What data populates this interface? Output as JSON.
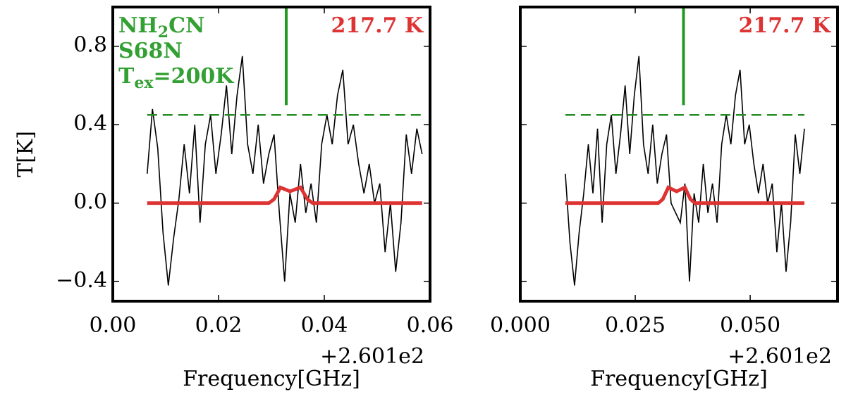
{
  "chart_data": [
    {
      "type": "line",
      "xlabel": "Frequency[GHz]",
      "ylabel": "T[K]",
      "x_offset_text": "+2.601e2",
      "xlim": [
        0,
        0.06
      ],
      "ylim": [
        -0.5,
        1.0
      ],
      "xticks": [
        {
          "value": 0,
          "label": "0.00"
        },
        {
          "value": 0.02,
          "label": "0.02"
        },
        {
          "value": 0.04,
          "label": "0.04"
        },
        {
          "value": 0.06,
          "label": "0.06"
        }
      ],
      "yticks": [
        {
          "value": -0.4,
          "label": "−0.4"
        },
        {
          "value": 0,
          "label": "0.0"
        },
        0.4,
        0.8
      ],
      "series": [
        {
          "color": "#000000",
          "linestyle": "solid",
          "thick": false,
          "x": [
            0.0065,
            0.0075,
            0.0085,
            0.0095,
            0.0105,
            0.0115,
            0.0125,
            0.0135,
            0.0145,
            0.0155,
            0.0165,
            0.0175,
            0.0185,
            0.0195,
            0.0205,
            0.0215,
            0.0225,
            0.0235,
            0.0245,
            0.0255,
            0.0265,
            0.0275,
            0.0285,
            0.0295,
            0.0305,
            0.0315,
            0.0325,
            0.0335,
            0.0345,
            0.0355,
            0.0365,
            0.0375,
            0.0385,
            0.0395,
            0.0405,
            0.0415,
            0.0425,
            0.0435,
            0.0445,
            0.0455,
            0.0465,
            0.0475,
            0.0485,
            0.0495,
            0.0505,
            0.0515,
            0.0525,
            0.0535,
            0.0545,
            0.0555,
            0.0565,
            0.0575,
            0.0585
          ],
          "values": [
            0.15,
            0.48,
            0.28,
            -0.15,
            -0.42,
            -0.18,
            0.02,
            0.3,
            0.05,
            0.4,
            -0.1,
            0.3,
            0.45,
            0.15,
            0.35,
            0.6,
            0.25,
            0.55,
            0.75,
            0.3,
            0.15,
            0.4,
            0.1,
            0.25,
            0.35,
            -0.05,
            -0.4,
            0.05,
            -0.1,
            0.2,
            -0.05,
            0.1,
            -0.1,
            0.3,
            0.45,
            0.3,
            0.55,
            0.68,
            0.3,
            0.4,
            0.2,
            0.05,
            0.2,
            0.0,
            0.1,
            -0.25,
            0.0,
            -0.35,
            -0.1,
            0.35,
            0.15,
            0.38,
            0.25
          ]
        },
        {
          "color": "#dd3333",
          "linestyle": "solid",
          "thick": true,
          "x": [
            0.0065,
            0.0295,
            0.0305,
            0.0317,
            0.0335,
            0.0355,
            0.0368,
            0.0378,
            0.0585
          ],
          "values": [
            0,
            0,
            0.02,
            0.08,
            0.06,
            0.08,
            0.02,
            0,
            0
          ]
        },
        {
          "color": "#228b22",
          "linestyle": "dashed",
          "thick": false,
          "x": [
            0.0065,
            0.0585
          ],
          "values": [
            0.45,
            0.45
          ]
        }
      ],
      "line_marker": {
        "x": 0.0328,
        "y": [
          0.5,
          1.0
        ],
        "color": "#229922"
      },
      "annotation_color": "#33a033",
      "annotation_lines": [
        [
          {
            "text": "NH",
            "sub": false
          },
          {
            "text": "2",
            "sub": true
          },
          {
            "text": "CN",
            "sub": false
          }
        ],
        [
          {
            "text": "S68N",
            "sub": false
          }
        ],
        [
          {
            "text": "T",
            "sub": false
          },
          {
            "text": "ex",
            "sub": true
          },
          {
            "text": "=200K",
            "sub": false
          }
        ]
      ],
      "temperature_label": "217.7 K",
      "temperature_color": "#dd3333"
    },
    {
      "type": "line",
      "xlabel": "Frequency[GHz]",
      "x_offset_text": "+2.601e2",
      "xlim": [
        0,
        0.069
      ],
      "ylim": [
        -0.5,
        1.0
      ],
      "xticks": [
        {
          "value": 0,
          "label": "0.000"
        },
        {
          "value": 0.025,
          "label": "0.025"
        },
        {
          "value": 0.05,
          "label": "0.050"
        }
      ],
      "yticks": [
        -0.4,
        0,
        0.4,
        0.8
      ],
      "ytick_labels": false,
      "series": [
        {
          "color": "#000000",
          "linestyle": "solid",
          "thick": false,
          "x": [
            0.0098,
            0.0108,
            0.0118,
            0.0128,
            0.0138,
            0.0148,
            0.0158,
            0.0168,
            0.0178,
            0.0188,
            0.0198,
            0.0208,
            0.0218,
            0.0228,
            0.0238,
            0.0248,
            0.0258,
            0.0268,
            0.0278,
            0.0288,
            0.0298,
            0.0308,
            0.0318,
            0.0328,
            0.0338,
            0.0348,
            0.0358,
            0.0368,
            0.0378,
            0.0388,
            0.0398,
            0.0408,
            0.0418,
            0.0428,
            0.0438,
            0.0448,
            0.0458,
            0.0468,
            0.0478,
            0.0488,
            0.0498,
            0.0508,
            0.0518,
            0.0528,
            0.0538,
            0.0548,
            0.0558,
            0.0568,
            0.0578,
            0.0588,
            0.0598,
            0.0608,
            0.0618
          ],
          "values": [
            0.15,
            -0.2,
            -0.42,
            -0.15,
            0.05,
            0.3,
            0.05,
            0.38,
            -0.1,
            0.3,
            0.45,
            0.15,
            0.35,
            0.6,
            0.25,
            0.55,
            0.75,
            0.3,
            0.15,
            0.4,
            0.1,
            0.25,
            0.35,
            0.0,
            -0.05,
            -0.1,
            0.1,
            -0.4,
            0.05,
            -0.1,
            0.2,
            -0.05,
            0.1,
            -0.1,
            0.3,
            0.45,
            0.3,
            0.55,
            0.68,
            0.3,
            0.4,
            0.2,
            0.05,
            0.2,
            0.0,
            0.1,
            -0.25,
            0.0,
            -0.35,
            -0.1,
            0.35,
            0.15,
            0.38
          ]
        },
        {
          "color": "#dd3333",
          "linestyle": "solid",
          "thick": true,
          "x": [
            0.0098,
            0.03,
            0.031,
            0.0322,
            0.034,
            0.0358,
            0.037,
            0.038,
            0.0618
          ],
          "values": [
            0,
            0,
            0.02,
            0.08,
            0.06,
            0.08,
            0.02,
            0,
            0
          ]
        },
        {
          "color": "#228b22",
          "linestyle": "dashed",
          "thick": false,
          "x": [
            0.0098,
            0.0618
          ],
          "values": [
            0.45,
            0.45
          ]
        }
      ],
      "line_marker": {
        "x": 0.0355,
        "y": [
          0.5,
          1.0
        ],
        "color": "#229922"
      },
      "temperature_label": "217.7 K",
      "temperature_color": "#dd3333"
    }
  ]
}
